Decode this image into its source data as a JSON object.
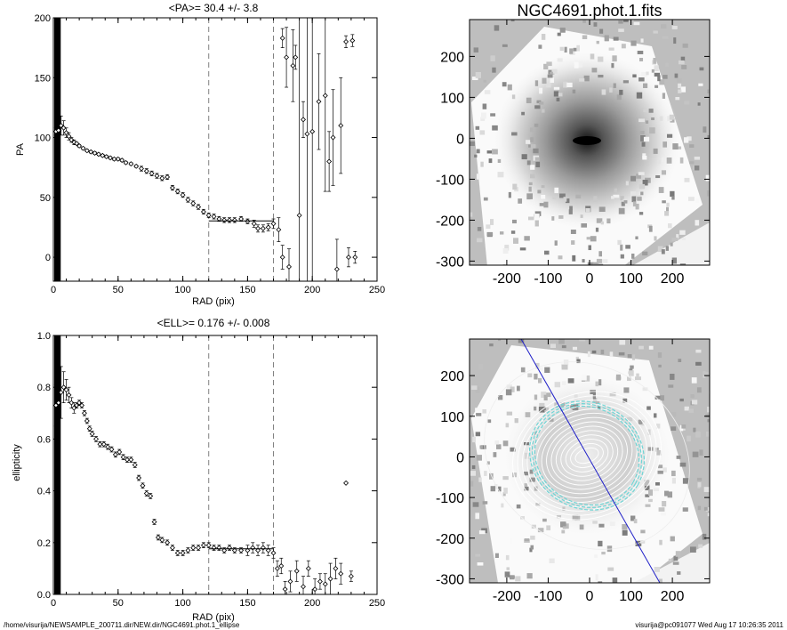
{
  "figure_title": "NGC4691.phot.1.fits",
  "footer": {
    "path": "/home/visurija/NEWSAMPLE_200711.dir/NEW.dir/NGC4691.phot.1_ellipse",
    "stamp": "visurija@pc091077  Wed Aug 17 10:26:35 2011"
  },
  "colors": {
    "axis": "#000000",
    "marker": "#000000",
    "dashed": "#808080",
    "image_background": "#bebebe",
    "isophotes": "#ffffff",
    "highlight_isophote": "#6fd5d5",
    "major_axis_line": "#2020c8"
  },
  "chart_data": [
    {
      "type": "scatter",
      "title": "<PA>=  30.4 +/-   3.8",
      "xlabel": "RAD (pix)",
      "ylabel": "PA",
      "xlim": [
        0,
        250
      ],
      "ylim": [
        -20,
        200
      ],
      "xticks": [
        0,
        50,
        100,
        150,
        200,
        250
      ],
      "yticks": [
        0,
        50,
        100,
        150,
        200
      ],
      "grid": false,
      "marker": "diamond",
      "vlines": [
        120,
        170
      ],
      "mean_line": {
        "x": [
          120,
          170
        ],
        "y": 30.4
      },
      "points": [
        {
          "x": 2,
          "y": 105,
          "e": 3
        },
        {
          "x": 4,
          "y": 106,
          "e": 5
        },
        {
          "x": 6,
          "y": 110,
          "e": 8
        },
        {
          "x": 8,
          "y": 108,
          "e": 6
        },
        {
          "x": 10,
          "y": 104,
          "e": 4
        },
        {
          "x": 12,
          "y": 101,
          "e": 3
        },
        {
          "x": 14,
          "y": 98,
          "e": 2
        },
        {
          "x": 16,
          "y": 96,
          "e": 2
        },
        {
          "x": 18,
          "y": 95,
          "e": 1
        },
        {
          "x": 20,
          "y": 93,
          "e": 1
        },
        {
          "x": 23,
          "y": 91,
          "e": 1
        },
        {
          "x": 26,
          "y": 89,
          "e": 1
        },
        {
          "x": 29,
          "y": 88,
          "e": 1
        },
        {
          "x": 32,
          "y": 87,
          "e": 1
        },
        {
          "x": 35,
          "y": 86,
          "e": 1
        },
        {
          "x": 38,
          "y": 85,
          "e": 1
        },
        {
          "x": 41,
          "y": 84,
          "e": 1
        },
        {
          "x": 44,
          "y": 83,
          "e": 1
        },
        {
          "x": 47,
          "y": 82,
          "e": 1
        },
        {
          "x": 50,
          "y": 82,
          "e": 1
        },
        {
          "x": 53,
          "y": 81,
          "e": 1
        },
        {
          "x": 56,
          "y": 79,
          "e": 1
        },
        {
          "x": 60,
          "y": 78,
          "e": 1
        },
        {
          "x": 64,
          "y": 76,
          "e": 1
        },
        {
          "x": 68,
          "y": 74,
          "e": 2
        },
        {
          "x": 72,
          "y": 72,
          "e": 2
        },
        {
          "x": 76,
          "y": 70,
          "e": 2
        },
        {
          "x": 80,
          "y": 68,
          "e": 2
        },
        {
          "x": 84,
          "y": 66,
          "e": 2
        },
        {
          "x": 88,
          "y": 67,
          "e": 2
        },
        {
          "x": 92,
          "y": 58,
          "e": 2
        },
        {
          "x": 96,
          "y": 55,
          "e": 2
        },
        {
          "x": 100,
          "y": 52,
          "e": 2
        },
        {
          "x": 104,
          "y": 48,
          "e": 2
        },
        {
          "x": 108,
          "y": 45,
          "e": 2
        },
        {
          "x": 112,
          "y": 42,
          "e": 2
        },
        {
          "x": 116,
          "y": 38,
          "e": 2
        },
        {
          "x": 120,
          "y": 35,
          "e": 2
        },
        {
          "x": 124,
          "y": 34,
          "e": 2
        },
        {
          "x": 128,
          "y": 32,
          "e": 2
        },
        {
          "x": 132,
          "y": 31,
          "e": 2
        },
        {
          "x": 136,
          "y": 31,
          "e": 2
        },
        {
          "x": 140,
          "y": 31,
          "e": 2
        },
        {
          "x": 145,
          "y": 32,
          "e": 2
        },
        {
          "x": 150,
          "y": 30,
          "e": 2
        },
        {
          "x": 155,
          "y": 28,
          "e": 3
        },
        {
          "x": 158,
          "y": 24,
          "e": 3
        },
        {
          "x": 162,
          "y": 24,
          "e": 3
        },
        {
          "x": 166,
          "y": 25,
          "e": 3
        },
        {
          "x": 170,
          "y": 28,
          "e": 4
        },
        {
          "x": 174,
          "y": 23,
          "e": 10
        },
        {
          "x": 177,
          "y": 183,
          "e": 8
        },
        {
          "x": 177,
          "y": 0,
          "e": 10
        },
        {
          "x": 180,
          "y": 167,
          "e": 25
        },
        {
          "x": 182,
          "y": -8,
          "e": 15
        },
        {
          "x": 185,
          "y": 160,
          "e": 30
        },
        {
          "x": 187,
          "y": 167,
          "e": 10
        },
        {
          "x": 190,
          "y": 35,
          "e": 200
        },
        {
          "x": 193,
          "y": 115,
          "e": 15
        },
        {
          "x": 196,
          "y": 103,
          "e": 200
        },
        {
          "x": 200,
          "y": 105,
          "e": 200
        },
        {
          "x": 205,
          "y": 130,
          "e": 40
        },
        {
          "x": 210,
          "y": 135,
          "e": 80
        },
        {
          "x": 213,
          "y": 80,
          "e": 25
        },
        {
          "x": 216,
          "y": 100,
          "e": 40
        },
        {
          "x": 219,
          "y": -10,
          "e": 25
        },
        {
          "x": 222,
          "y": 110,
          "e": 40
        },
        {
          "x": 226,
          "y": 180,
          "e": 5
        },
        {
          "x": 228,
          "y": 0,
          "e": 8
        },
        {
          "x": 231,
          "y": 181,
          "e": 5
        },
        {
          "x": 233,
          "y": 0,
          "e": 5
        }
      ]
    },
    {
      "type": "scatter",
      "title": "<ELL>= 0.176 +/-  0.008",
      "xlabel": "RAD (pix)",
      "ylabel": "ellipticity",
      "xlim": [
        0,
        250
      ],
      "ylim": [
        0,
        1
      ],
      "xticks": [
        0,
        50,
        100,
        150,
        200,
        250
      ],
      "yticks": [
        0.0,
        0.2,
        0.4,
        0.6,
        0.8,
        1.0
      ],
      "ytick_labels": [
        "0.0",
        "0.2",
        "0.4",
        "0.6",
        "0.8",
        "1.0"
      ],
      "grid": false,
      "marker": "diamond",
      "vlines": [
        120,
        170
      ],
      "mean_line": {
        "x": [
          120,
          170
        ],
        "y": 0.176
      },
      "points": [
        {
          "x": 2,
          "y": 0.73,
          "e": 0.08
        },
        {
          "x": 4,
          "y": 0.74,
          "e": 0.1
        },
        {
          "x": 6,
          "y": 0.78,
          "e": 0.1
        },
        {
          "x": 8,
          "y": 0.8,
          "e": 0.06
        },
        {
          "x": 10,
          "y": 0.79,
          "e": 0.04
        },
        {
          "x": 12,
          "y": 0.77,
          "e": 0.03
        },
        {
          "x": 14,
          "y": 0.74,
          "e": 0.02
        },
        {
          "x": 16,
          "y": 0.72,
          "e": 0.02
        },
        {
          "x": 18,
          "y": 0.73,
          "e": 0.01
        },
        {
          "x": 20,
          "y": 0.74,
          "e": 0.01
        },
        {
          "x": 22,
          "y": 0.73,
          "e": 0.01
        },
        {
          "x": 24,
          "y": 0.7,
          "e": 0.01
        },
        {
          "x": 26,
          "y": 0.67,
          "e": 0.01
        },
        {
          "x": 28,
          "y": 0.64,
          "e": 0.01
        },
        {
          "x": 30,
          "y": 0.62,
          "e": 0.01
        },
        {
          "x": 33,
          "y": 0.6,
          "e": 0.01
        },
        {
          "x": 36,
          "y": 0.58,
          "e": 0.01
        },
        {
          "x": 39,
          "y": 0.58,
          "e": 0.01
        },
        {
          "x": 42,
          "y": 0.57,
          "e": 0.01
        },
        {
          "x": 45,
          "y": 0.56,
          "e": 0.01
        },
        {
          "x": 48,
          "y": 0.54,
          "e": 0.01
        },
        {
          "x": 51,
          "y": 0.55,
          "e": 0.01
        },
        {
          "x": 54,
          "y": 0.53,
          "e": 0.01
        },
        {
          "x": 57,
          "y": 0.52,
          "e": 0.01
        },
        {
          "x": 60,
          "y": 0.52,
          "e": 0.01
        },
        {
          "x": 63,
          "y": 0.5,
          "e": 0.01
        },
        {
          "x": 66,
          "y": 0.45,
          "e": 0.01
        },
        {
          "x": 69,
          "y": 0.42,
          "e": 0.01
        },
        {
          "x": 72,
          "y": 0.39,
          "e": 0.01
        },
        {
          "x": 75,
          "y": 0.38,
          "e": 0.01
        },
        {
          "x": 78,
          "y": 0.28,
          "e": 0.01
        },
        {
          "x": 81,
          "y": 0.22,
          "e": 0.01
        },
        {
          "x": 84,
          "y": 0.21,
          "e": 0.01
        },
        {
          "x": 88,
          "y": 0.2,
          "e": 0.01
        },
        {
          "x": 92,
          "y": 0.18,
          "e": 0.01
        },
        {
          "x": 96,
          "y": 0.16,
          "e": 0.01
        },
        {
          "x": 100,
          "y": 0.16,
          "e": 0.01
        },
        {
          "x": 104,
          "y": 0.17,
          "e": 0.01
        },
        {
          "x": 108,
          "y": 0.18,
          "e": 0.01
        },
        {
          "x": 112,
          "y": 0.18,
          "e": 0.01
        },
        {
          "x": 116,
          "y": 0.19,
          "e": 0.01
        },
        {
          "x": 120,
          "y": 0.19,
          "e": 0.01
        },
        {
          "x": 124,
          "y": 0.18,
          "e": 0.01
        },
        {
          "x": 128,
          "y": 0.18,
          "e": 0.01
        },
        {
          "x": 132,
          "y": 0.17,
          "e": 0.01
        },
        {
          "x": 136,
          "y": 0.18,
          "e": 0.01
        },
        {
          "x": 140,
          "y": 0.17,
          "e": 0.01
        },
        {
          "x": 145,
          "y": 0.17,
          "e": 0.01
        },
        {
          "x": 150,
          "y": 0.17,
          "e": 0.02
        },
        {
          "x": 154,
          "y": 0.18,
          "e": 0.02
        },
        {
          "x": 158,
          "y": 0.17,
          "e": 0.02
        },
        {
          "x": 162,
          "y": 0.18,
          "e": 0.02
        },
        {
          "x": 166,
          "y": 0.17,
          "e": 0.02
        },
        {
          "x": 170,
          "y": 0.16,
          "e": 0.02
        },
        {
          "x": 173,
          "y": 0.1,
          "e": 0.03
        },
        {
          "x": 176,
          "y": 0.11,
          "e": 0.03
        },
        {
          "x": 179,
          "y": 0.02,
          "e": 0.03
        },
        {
          "x": 183,
          "y": 0.05,
          "e": 0.04
        },
        {
          "x": 188,
          "y": 0.09,
          "e": 0.04
        },
        {
          "x": 193,
          "y": 0.03,
          "e": 0.04
        },
        {
          "x": 197,
          "y": 0.1,
          "e": 0.03
        },
        {
          "x": 202,
          "y": 0.02,
          "e": 0.04
        },
        {
          "x": 206,
          "y": 0.05,
          "e": 0.03
        },
        {
          "x": 210,
          "y": 0.04,
          "e": 0.04
        },
        {
          "x": 214,
          "y": 0.06,
          "e": 0.06
        },
        {
          "x": 218,
          "y": 0.1,
          "e": 0.04
        },
        {
          "x": 222,
          "y": 0.08,
          "e": 0.04
        },
        {
          "x": 226,
          "y": 0.43,
          "e": 0.0
        },
        {
          "x": 230,
          "y": 0.07,
          "e": 0.02
        }
      ]
    },
    {
      "type": "heatmap",
      "title": "NGC4691.phot.1.fits",
      "xlim": [
        -290,
        290
      ],
      "ylim": [
        -310,
        290
      ],
      "xticks": [
        -200,
        -100,
        0,
        100,
        200
      ],
      "yticks": [
        -300,
        -200,
        -100,
        0,
        100,
        200
      ],
      "content": "rotated galaxy image, grayscale"
    },
    {
      "type": "heatmap",
      "title": "",
      "xlim": [
        -290,
        290
      ],
      "ylim": [
        -310,
        290
      ],
      "xticks": [
        -200,
        -100,
        0,
        100,
        200
      ],
      "yticks": [
        -300,
        -200,
        -100,
        0,
        100,
        200
      ],
      "content": "galaxy image with fitted isophote ellipses and major-axis line"
    }
  ]
}
